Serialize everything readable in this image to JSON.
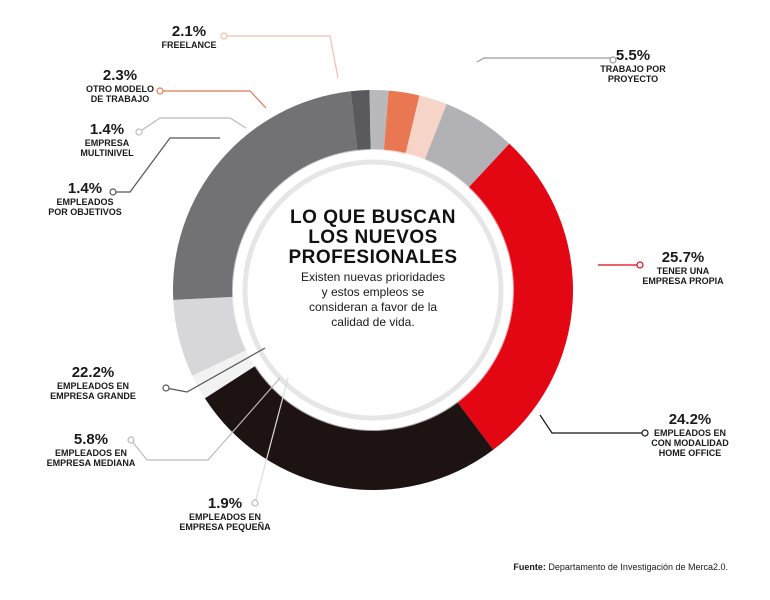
{
  "chart_data": {
    "type": "pie",
    "title": "LO QUE BUSCAN\nLOS NUEVOS\nPROFESIONALES",
    "subtitle": "Existen nuevas prioridades\ny estos empleos se\nconsideran a favor de la\ncalidad de vida.",
    "slices": [
      {
        "label": "TRABAJO POR\nPROYECTO",
        "value": 5.5,
        "value_label": "5.5%",
        "color": "#b1b1b6"
      },
      {
        "label": "TENER UNA\nEMPRESA PROPIA",
        "value": 25.7,
        "value_label": "25.7%",
        "color": "#e30613"
      },
      {
        "label": "EMPLEADOS EN\nCON MODALIDAD\nHOME OFFICE",
        "value": 24.2,
        "value_label": "24.2%",
        "color": "#1d1312"
      },
      {
        "label": "EMPLEADOS EN\nEMPRESA PEQUEÑA",
        "value": 1.9,
        "value_label": "1.9%",
        "color": "#f2f2f3"
      },
      {
        "label": "EMPLEADOS EN\nEMPRESA MEDIANA",
        "value": 5.8,
        "value_label": "5.8%",
        "color": "#d7d7da"
      },
      {
        "label": "EMPLEADOS EN\nEMPRESA GRANDE",
        "value": 22.2,
        "value_label": "22.2%",
        "color": "#727275"
      },
      {
        "label": "EMPLEADOS\nPOR OBJETIVOS",
        "value": 1.4,
        "value_label": "1.4%",
        "color": "#5a5a5e"
      },
      {
        "label": "EMPRESA\nMULTINIVEL",
        "value": 1.4,
        "value_label": "1.4%",
        "color": "#b8b8bd"
      },
      {
        "label": "OTRO MODELO\nDE TRABAJO",
        "value": 2.3,
        "value_label": "2.3%",
        "color": "#e87752"
      },
      {
        "label": "FREELANCE",
        "value": 2.1,
        "value_label": "2.1%",
        "color": "#f7d4c8"
      }
    ]
  },
  "source": {
    "prefix": "Fuente:",
    "text": " Departamento de Investigación de Merca2.0."
  }
}
